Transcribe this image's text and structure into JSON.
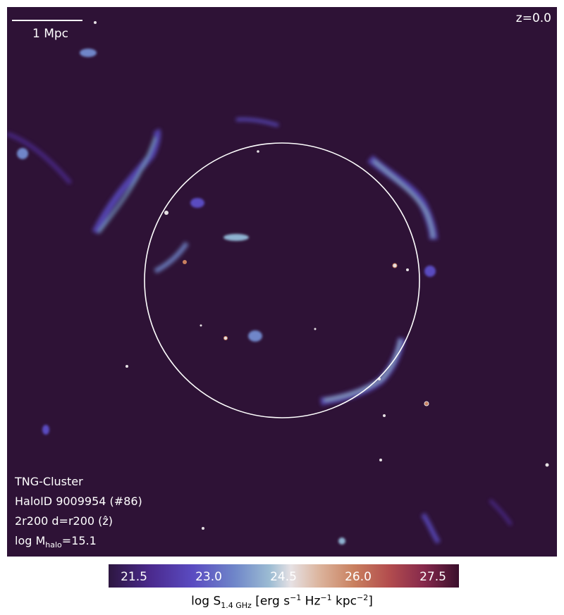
{
  "scalebar": {
    "label": "1 Mpc"
  },
  "redshift": "z=0.0",
  "info": {
    "simulation": "TNG-Cluster",
    "halo_id": "HaloID 9009954 (#86)",
    "projection": "2r200 d=r200 (ẑ)",
    "mass_prefix": "log M",
    "mass_sub": "halo",
    "mass_suffix": "=15.1"
  },
  "colorbar": {
    "ticks": [
      "21.5",
      "23.0",
      "24.5",
      "26.0",
      "27.5"
    ],
    "label_prefix": "log S",
    "label_sub": "1.4 GHz",
    "label_mid": " [erg s",
    "label_sup1": "−1",
    "label_mid2": " Hz",
    "label_sup2": "−1",
    "label_mid3": " kpc",
    "label_sup3": "−2",
    "label_end": "]"
  },
  "colors": {
    "background": "#2e1236",
    "low": "#5a4bc1",
    "mid": "#9cbcd3",
    "high": "#c9805f"
  }
}
